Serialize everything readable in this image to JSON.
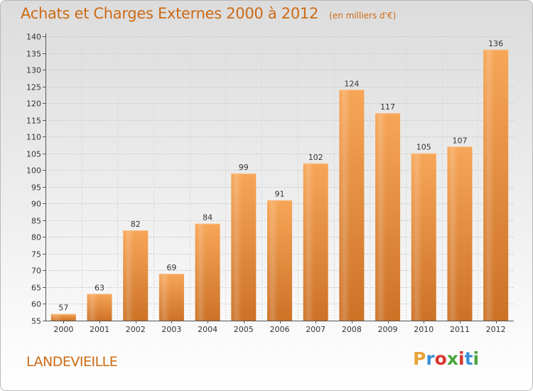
{
  "chart_data": {
    "type": "bar",
    "title": "Achats et Charges Externes 2000 à 2012",
    "subtitle": "(en milliers d'€)",
    "categories": [
      "2000",
      "2001",
      "2002",
      "2003",
      "2004",
      "2005",
      "2006",
      "2007",
      "2008",
      "2009",
      "2010",
      "2011",
      "2012"
    ],
    "values": [
      57,
      63,
      82,
      69,
      84,
      99,
      91,
      102,
      124,
      117,
      105,
      107,
      136
    ],
    "yticks": [
      55,
      60,
      65,
      70,
      75,
      80,
      85,
      90,
      95,
      100,
      105,
      110,
      115,
      120,
      125,
      130,
      135,
      140
    ],
    "ylim": [
      55,
      140
    ],
    "grid": true,
    "bar_color": "#f09a40",
    "accent_color": "#cc6a14"
  },
  "footer": {
    "commune": "LANDEVIEILLE",
    "brand_letters": [
      "P",
      "r",
      "o",
      "x",
      "i",
      "t",
      "i"
    ],
    "brand_colors": [
      "#e8a33a",
      "#3a8fd8",
      "#d8342c",
      "#4aa63c",
      "#d8342c",
      "#3a8fd8",
      "#4aa63c"
    ]
  }
}
